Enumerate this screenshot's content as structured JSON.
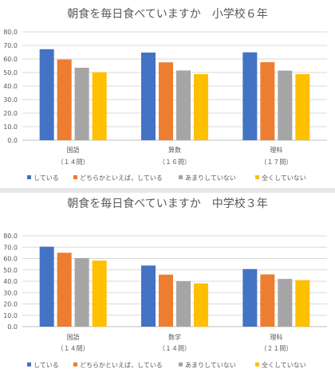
{
  "chart_data": [
    {
      "type": "bar",
      "title": "朝食を毎日食べていますか　小学校６年",
      "categories": [
        "国語",
        "算数",
        "理科"
      ],
      "category_sublabels": [
        "（１４問）",
        "（１６問）",
        "（１７問）"
      ],
      "ylim": [
        0,
        80
      ],
      "yticks": [
        "0.0",
        "10.0",
        "20.0",
        "30.0",
        "40.0",
        "50.0",
        "60.0",
        "70.0",
        "80.0"
      ],
      "grid": true,
      "legend_position": "bottom",
      "series": [
        {
          "name": "している",
          "color": "#4472C4",
          "values": [
            67.2,
            64.7,
            64.9
          ]
        },
        {
          "name": "どちらかといえば，している",
          "color": "#ED7D31",
          "values": [
            59.6,
            57.5,
            57.6
          ]
        },
        {
          "name": "あまりしていない",
          "color": "#A5A5A5",
          "values": [
            53.5,
            51.5,
            51.4
          ]
        },
        {
          "name": "全くしていない",
          "color": "#FFC000",
          "values": [
            50.2,
            48.8,
            48.8
          ]
        }
      ]
    },
    {
      "type": "bar",
      "title": "朝食を毎日食べていますか　中学校３年",
      "categories": [
        "国語",
        "数学",
        "理科"
      ],
      "category_sublabels": [
        "（１４問）",
        "（１４問）",
        "（２１問）"
      ],
      "ylim": [
        0,
        80
      ],
      "yticks": [
        "0.0",
        "10.0",
        "20.0",
        "30.0",
        "40.0",
        "50.0",
        "60.0",
        "70.0",
        "80.0"
      ],
      "grid": true,
      "legend_position": "bottom",
      "series": [
        {
          "name": "している",
          "color": "#4472C4",
          "values": [
            70.4,
            53.8,
            50.7
          ]
        },
        {
          "name": "どちらかといえば，している",
          "color": "#ED7D31",
          "values": [
            65.1,
            45.8,
            46.0
          ]
        },
        {
          "name": "あまりしていない",
          "color": "#A5A5A5",
          "values": [
            60.4,
            40.0,
            42.0
          ]
        },
        {
          "name": "全くしていない",
          "color": "#FFC000",
          "values": [
            58.2,
            38.1,
            41.0
          ]
        }
      ]
    }
  ]
}
